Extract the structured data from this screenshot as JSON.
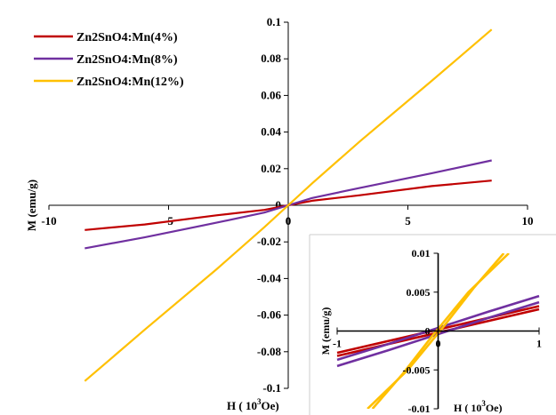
{
  "chart_data": [
    {
      "type": "line",
      "role": "main",
      "xlabel": "H ( 10",
      "xlabel_sup": "3",
      "xlabel_tail": "Oe)",
      "ylabel": "M (emu/g)",
      "xlim": [
        -10,
        10
      ],
      "ylim": [
        -0.1,
        0.1
      ],
      "x_ticks": [
        -10,
        -5,
        0,
        5,
        10
      ],
      "x_tick_labels": [
        "-10",
        "-5",
        "0",
        "5",
        "10"
      ],
      "y_ticks": [
        0.1,
        0.08,
        0.06,
        0.04,
        0.02,
        0,
        -0.02,
        -0.04,
        -0.06,
        -0.08,
        -0.1
      ],
      "y_tick_labels": [
        "0.1",
        "0.08",
        "0.06",
        "0.04",
        "0.02",
        "0",
        "-0.02",
        "-0.04",
        "-0.06",
        "-0.08",
        "-0.1"
      ],
      "grid": false,
      "legend_position": "top-left",
      "series": [
        {
          "name": "Zn2SnO4:Mn(4%)",
          "color": "#c00000",
          "x": [
            -8.5,
            -6,
            -3,
            -1,
            0,
            1,
            3,
            6,
            8.5
          ],
          "y": [
            -0.0135,
            -0.0105,
            -0.0055,
            -0.0025,
            0,
            0.0025,
            0.0055,
            0.0105,
            0.0135
          ]
        },
        {
          "name": "Zn2SnO4:Mn(8%)",
          "color": "#7030a0",
          "x": [
            -8.5,
            -6,
            -3,
            -1,
            0,
            1,
            3,
            6,
            8.5
          ],
          "y": [
            -0.0235,
            -0.0175,
            -0.0095,
            -0.004,
            0,
            0.004,
            0.0095,
            0.0175,
            0.0245
          ]
        },
        {
          "name": "Zn2SnO4:Mn(12%)",
          "color": "#ffc000",
          "x": [
            -8.5,
            -6,
            -3,
            -1,
            0,
            1,
            3,
            6,
            8.5
          ],
          "y": [
            -0.096,
            -0.068,
            -0.035,
            -0.012,
            0,
            0.012,
            0.035,
            0.068,
            0.096
          ]
        }
      ]
    },
    {
      "type": "line",
      "role": "inset",
      "xlabel": "H ( 10",
      "xlabel_sup": "3",
      "xlabel_tail": "Oe)",
      "ylabel": "M (emu/g)",
      "xlim": [
        -1,
        1
      ],
      "ylim": [
        -0.01,
        0.01
      ],
      "x_ticks": [
        -1,
        0,
        1
      ],
      "x_tick_labels": [
        "-1",
        "0",
        "1"
      ],
      "y_ticks": [
        0.01,
        0.005,
        0,
        -0.005,
        -0.01
      ],
      "y_tick_labels": [
        "0.01",
        "0.005",
        "0",
        "-0.005",
        "-0.01"
      ],
      "grid": false,
      "series": [
        {
          "name": "",
          "color": "#c00000",
          "branches": [
            {
              "x": [
                -1,
                -0.5,
                0,
                0.5,
                1
              ],
              "y": [
                -0.0032,
                -0.0017,
                -0.0002,
                0.0013,
                0.0028
              ]
            },
            {
              "x": [
                -1,
                -0.5,
                0,
                0.5,
                1
              ],
              "y": [
                -0.0028,
                -0.0013,
                0.0002,
                0.0017,
                0.0032
              ]
            }
          ]
        },
        {
          "name": "",
          "color": "#7030a0",
          "branches": [
            {
              "x": [
                -1,
                -0.5,
                0,
                0.5,
                1
              ],
              "y": [
                -0.0045,
                -0.0025,
                -0.0004,
                0.0017,
                0.0037
              ]
            },
            {
              "x": [
                -1,
                -0.5,
                0,
                0.5,
                1
              ],
              "y": [
                -0.0037,
                -0.0017,
                0.0004,
                0.0025,
                0.0045
              ]
            }
          ]
        },
        {
          "name": "",
          "color": "#ffc000",
          "branches": [
            {
              "x": [
                -0.7,
                -0.3,
                0.05,
                0.35,
                0.65
              ],
              "y": [
                -0.01,
                -0.005,
                0.0005,
                0.0055,
                0.01
              ]
            },
            {
              "x": [
                -0.65,
                -0.35,
                -0.05,
                0.3,
                0.7
              ],
              "y": [
                -0.01,
                -0.0055,
                -0.0005,
                0.005,
                0.01
              ]
            }
          ]
        }
      ]
    }
  ]
}
